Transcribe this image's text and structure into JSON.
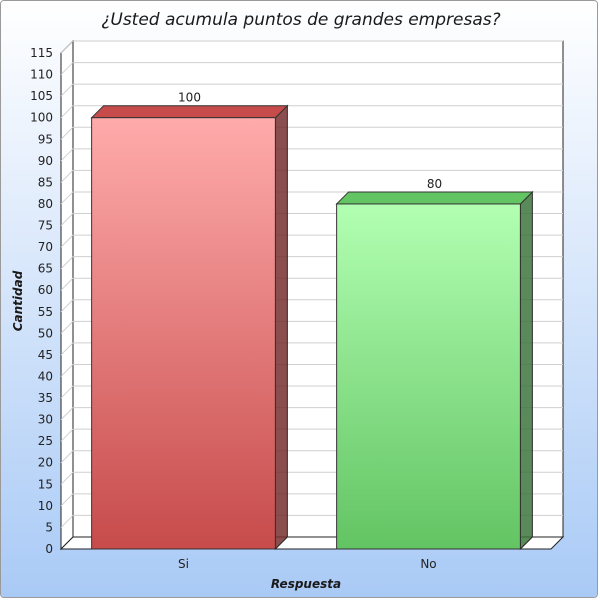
{
  "chart_data": {
    "type": "bar",
    "title": "¿Usted acumula puntos de grandes empresas?",
    "xlabel": "Respuesta",
    "ylabel": "Cantidad",
    "categories": [
      "Si",
      "No"
    ],
    "values": [
      100,
      80
    ],
    "data_labels": [
      "100",
      "80"
    ],
    "ylim": [
      0,
      115
    ],
    "ytick_step": 5,
    "grid": true,
    "legend": "none",
    "style": "3d",
    "bar_colors": [
      "#c74b4b",
      "#63c463"
    ],
    "bar_top_colors": [
      "#ffabab",
      "#b2ffb2"
    ],
    "background_colors": [
      "#ffffff",
      "#a9caf6"
    ]
  }
}
